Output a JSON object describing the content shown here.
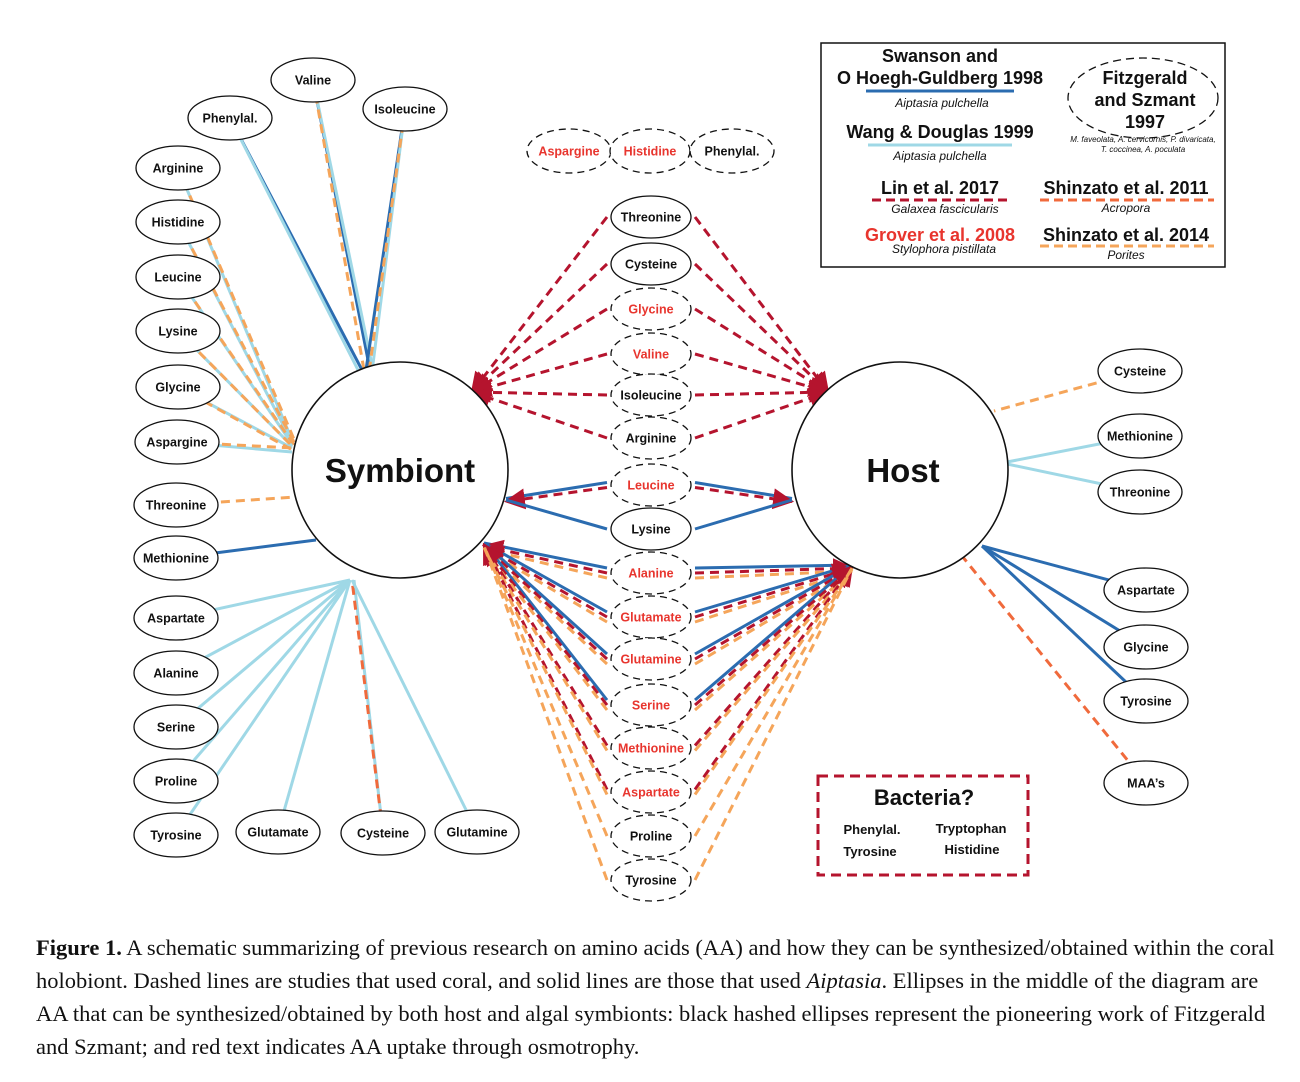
{
  "diagram": {
    "symbiont_label": "Symbiont",
    "host_label": "Host",
    "legend": {
      "swanson_title": [
        "Swanson and",
        "O Hoegh-Guldberg 1998"
      ],
      "swanson_species": "Aiptasia pulchella",
      "wang_title": "Wang & Douglas 1999",
      "wang_species": "Aiptasia pulchella",
      "fitzgerald_title": [
        "Fitzgerald",
        "and Szmant",
        "1997"
      ],
      "fitzgerald_species": [
        "M. faveolata, A. cervicornis, P. divaricata,",
        "T. coccinea, A. poculata"
      ],
      "lin_title": "Lin et al. 2017",
      "lin_species": "Galaxea fascicularis",
      "shinzato2011_title": "Shinzato et al. 2011",
      "shinzato2011_species": "Acropora",
      "grover_title": "Grover et al. 2008",
      "grover_species": "Stylophora pistillata",
      "shinzato2014_title": "Shinzato et al. 2014",
      "shinzato2014_species": "Porites"
    },
    "bacteria": {
      "title": "Bacteria?",
      "items": [
        "Phenylal.",
        "Tryptophan",
        "Tyrosine",
        "Histidine"
      ]
    },
    "top_dashed": [
      "Aspargine",
      "Histidine",
      "Phenylal."
    ],
    "symbiont_nodes": [
      "Valine",
      "Phenylal.",
      "Isoleucine",
      "Arginine",
      "Histidine",
      "Leucine",
      "Lysine",
      "Glycine",
      "Aspargine",
      "Threonine",
      "Methionine",
      "Aspartate",
      "Alanine",
      "Serine",
      "Proline",
      "Tyrosine",
      "Glutamate",
      "Cysteine",
      "Glutamine"
    ],
    "middle_nodes": [
      "Threonine",
      "Cysteine",
      "Glycine",
      "Valine",
      "Isoleucine",
      "Arginine",
      "Leucine",
      "Lysine",
      "Alanine",
      "Glutamate",
      "Glutamine",
      "Serine",
      "Methionine",
      "Aspartate",
      "Proline",
      "Tyrosine"
    ],
    "host_nodes": [
      "Cysteine",
      "Methionine",
      "Threonine",
      "Aspartate",
      "Glycine",
      "Tyrosine",
      "MAA’s"
    ],
    "colors": {
      "swanson": "#2b6cb0",
      "wang": "#9fd8e6",
      "lin": "#b5142e",
      "shinzato2011": "#f06a3c",
      "shinzato2014": "#f5a55a",
      "osmotrophy_red": "#e8352e"
    }
  },
  "caption": {
    "label": "Figure 1.",
    "part1": " A schematic summarizing of previous research on amino acids (AA) and how they can be synthesized/obtained within the coral holobiont. Dashed lines are studies that used coral, and solid lines are those that used ",
    "italic": "Aiptasia",
    "part2": ". Ellipses in the middle of the diagram are AA that can be synthesized/obtained by both host and algal symbionts: black hashed ellipses represent the pioneering work of Fitzgerald and Szmant; and red text indicates AA uptake through osmotrophy."
  }
}
